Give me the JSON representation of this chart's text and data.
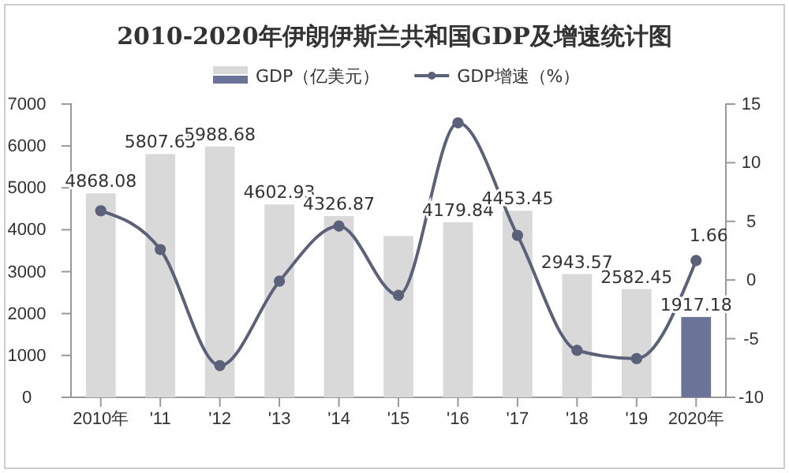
{
  "chart_data": {
    "type": "bar",
    "title": "2010-2020年伊朗伊斯兰共和国GDP及增速统计图",
    "categories": [
      "2010年",
      "'11",
      "'12",
      "'13",
      "'14",
      "'15",
      "'16",
      "'17",
      "'18",
      "'19",
      "2020年"
    ],
    "series": [
      {
        "name": "GDP（亿美元）",
        "color": "#d9d9d9",
        "colors": [
          "#d9d9d9",
          "#d9d9d9",
          "#d9d9d9",
          "#d9d9d9",
          "#d9d9d9",
          "#d9d9d9",
          "#d9d9d9",
          "#d9d9d9",
          "#d9d9d9",
          "#d9d9d9",
          "#6b7399"
        ],
        "values": [
          4868.08,
          5807.65,
          5988.68,
          4602.93,
          4326.87,
          3850,
          4179.84,
          4453.45,
          2943.57,
          2582.45,
          1917.18
        ],
        "value_labels": [
          "4868.08",
          "5807.65",
          "5988.68",
          "4602.93",
          "4326.87",
          null,
          "4179.84",
          "4453.45",
          "2943.57",
          "2582.45",
          "1917.18"
        ]
      },
      {
        "name": "GDP增速（%）",
        "type": "line",
        "axis": "y2",
        "color": "#5a6178",
        "values": [
          5.9,
          2.6,
          -7.3,
          -0.1,
          4.6,
          -1.3,
          13.4,
          3.8,
          -6.0,
          -6.7,
          1.66
        ],
        "value_labels": [
          null,
          null,
          null,
          null,
          null,
          null,
          null,
          null,
          null,
          null,
          "1.66"
        ]
      }
    ],
    "ylim": [
      0,
      7000
    ],
    "yticks": [
      0,
      1000,
      2000,
      3000,
      4000,
      5000,
      6000,
      7000
    ],
    "y2lim": [
      -10,
      15
    ],
    "y2ticks": [
      -10,
      -5,
      0,
      5,
      10,
      15
    ],
    "grid": false,
    "legend": "top",
    "marker": "circle",
    "line_style": "solid"
  }
}
